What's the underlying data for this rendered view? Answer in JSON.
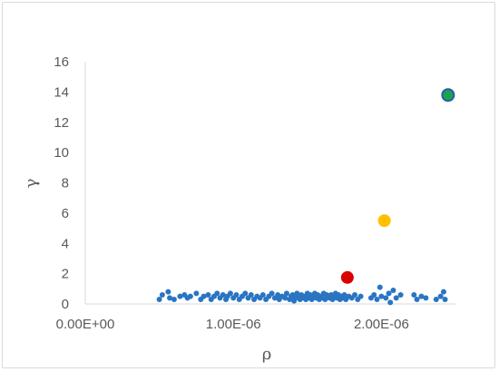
{
  "chart_data": {
    "type": "scatter",
    "title": "",
    "xlabel": "ρ",
    "ylabel": "γ",
    "xlim": [
      0,
      2.5e-06
    ],
    "ylim": [
      0,
      16
    ],
    "grid": false,
    "legend": "none",
    "x_tick_labels": [
      "0.00E+00",
      "1.00E-06",
      "2.00E-06"
    ],
    "x_ticks": [
      0,
      1e-06,
      2e-06
    ],
    "y_tick_labels": [
      "0",
      "2",
      "4",
      "6",
      "8",
      "10",
      "12",
      "14",
      "16"
    ],
    "y_ticks": [
      0,
      2,
      4,
      6,
      8,
      10,
      12,
      14,
      16
    ],
    "colors": {
      "small": "#2a75c2",
      "red": "#d90000",
      "yellow": "#ffc000",
      "green": "#1fa050",
      "green_outline": "#1f5fa8",
      "axis": "#d9d9d9"
    },
    "series": [
      {
        "style": "small-blue",
        "points": [
          [
            5e-07,
            0.3
          ],
          [
            5.2e-07,
            0.6
          ],
          [
            5.6e-07,
            0.8
          ],
          [
            5.7e-07,
            0.4
          ],
          [
            6e-07,
            0.3
          ],
          [
            6.4e-07,
            0.5
          ],
          [
            6.7e-07,
            0.6
          ],
          [
            6.9e-07,
            0.4
          ],
          [
            7.1e-07,
            0.5
          ],
          [
            7.5e-07,
            0.7
          ],
          [
            7.8e-07,
            0.3
          ],
          [
            8e-07,
            0.5
          ],
          [
            8.3e-07,
            0.6
          ],
          [
            8.5e-07,
            0.3
          ],
          [
            8.7e-07,
            0.5
          ],
          [
            8.9e-07,
            0.7
          ],
          [
            9.1e-07,
            0.4
          ],
          [
            9.3e-07,
            0.6
          ],
          [
            9.5e-07,
            0.3
          ],
          [
            9.6e-07,
            0.5
          ],
          [
            9.8e-07,
            0.7
          ],
          [
            1e-06,
            0.4
          ],
          [
            1.02e-06,
            0.6
          ],
          [
            1.04e-06,
            0.3
          ],
          [
            1.06e-06,
            0.5
          ],
          [
            1.08e-06,
            0.7
          ],
          [
            1.1e-06,
            0.4
          ],
          [
            1.12e-06,
            0.6
          ],
          [
            1.14e-06,
            0.3
          ],
          [
            1.16e-06,
            0.5
          ],
          [
            1.18e-06,
            0.4
          ],
          [
            1.2e-06,
            0.6
          ],
          [
            1.22e-06,
            0.3
          ],
          [
            1.24e-06,
            0.5
          ],
          [
            1.26e-06,
            0.7
          ],
          [
            1.28e-06,
            0.4
          ],
          [
            1.3e-06,
            0.6
          ],
          [
            1.31e-06,
            0.3
          ],
          [
            1.33e-06,
            0.5
          ],
          [
            1.35e-06,
            0.4
          ],
          [
            1.36e-06,
            0.7
          ],
          [
            1.38e-06,
            0.3
          ],
          [
            1.39e-06,
            0.5
          ],
          [
            1.4e-06,
            0.6
          ],
          [
            1.41e-06,
            0.2
          ],
          [
            1.42e-06,
            0.4
          ],
          [
            1.43e-06,
            0.7
          ],
          [
            1.44e-06,
            0.5
          ],
          [
            1.45e-06,
            0.3
          ],
          [
            1.46e-06,
            0.6
          ],
          [
            1.47e-06,
            0.4
          ],
          [
            1.48e-06,
            0.5
          ],
          [
            1.49e-06,
            0.3
          ],
          [
            1.5e-06,
            0.7
          ],
          [
            1.51e-06,
            0.4
          ],
          [
            1.52e-06,
            0.6
          ],
          [
            1.53e-06,
            0.3
          ],
          [
            1.54e-06,
            0.5
          ],
          [
            1.55e-06,
            0.7
          ],
          [
            1.56e-06,
            0.4
          ],
          [
            1.57e-06,
            0.6
          ],
          [
            1.58e-06,
            0.3
          ],
          [
            1.59e-06,
            0.5
          ],
          [
            1.6e-06,
            0.4
          ],
          [
            1.61e-06,
            0.7
          ],
          [
            1.62e-06,
            0.3
          ],
          [
            1.63e-06,
            0.6
          ],
          [
            1.64e-06,
            0.5
          ],
          [
            1.65e-06,
            0.4
          ],
          [
            1.66e-06,
            0.6
          ],
          [
            1.67e-06,
            0.3
          ],
          [
            1.68e-06,
            0.5
          ],
          [
            1.69e-06,
            0.7
          ],
          [
            1.7e-06,
            0.4
          ],
          [
            1.71e-06,
            0.6
          ],
          [
            1.72e-06,
            0.3
          ],
          [
            1.73e-06,
            0.5
          ],
          [
            1.74e-06,
            0.4
          ],
          [
            1.75e-06,
            0.6
          ],
          [
            1.76e-06,
            0.3
          ],
          [
            1.78e-06,
            0.5
          ],
          [
            1.8e-06,
            0.4
          ],
          [
            1.82e-06,
            0.6
          ],
          [
            1.84e-06,
            0.3
          ],
          [
            1.86e-06,
            0.5
          ],
          [
            1.93e-06,
            0.4
          ],
          [
            1.95e-06,
            0.6
          ],
          [
            1.97e-06,
            0.3
          ],
          [
            1.99e-06,
            1.1
          ],
          [
            2e-06,
            0.5
          ],
          [
            2.03e-06,
            0.4
          ],
          [
            2.05e-06,
            0.7
          ],
          [
            2.06e-06,
            0.1
          ],
          [
            2.08e-06,
            0.9
          ],
          [
            2.1e-06,
            0.4
          ],
          [
            2.13e-06,
            0.6
          ],
          [
            2.22e-06,
            0.6
          ],
          [
            2.24e-06,
            0.3
          ],
          [
            2.27e-06,
            0.5
          ],
          [
            2.3e-06,
            0.4
          ],
          [
            2.37e-06,
            0.3
          ],
          [
            2.4e-06,
            0.5
          ],
          [
            2.42e-06,
            0.8
          ],
          [
            2.43e-06,
            0.3
          ]
        ]
      },
      {
        "style": "red",
        "points": [
          [
            1.77e-06,
            1.75
          ]
        ]
      },
      {
        "style": "yellow",
        "points": [
          [
            2.02e-06,
            5.5
          ]
        ]
      },
      {
        "style": "green",
        "points": [
          [
            2.45e-06,
            13.8
          ]
        ]
      }
    ]
  }
}
